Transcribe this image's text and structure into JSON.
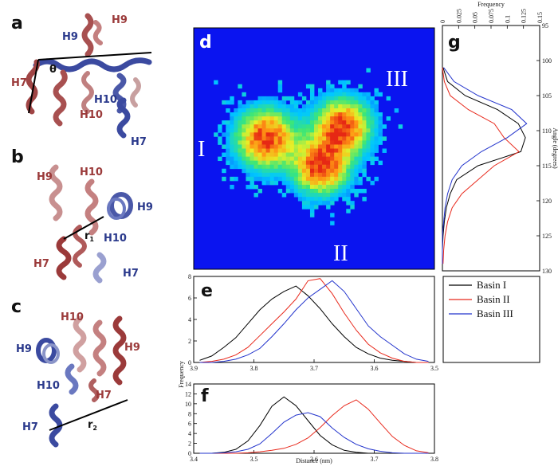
{
  "panels": {
    "a": "a",
    "b": "b",
    "c": "c",
    "d": "d",
    "e": "e",
    "f": "f",
    "g": "g"
  },
  "molecule_labels": {
    "a": {
      "h9_red": "H9",
      "h9_blue": "H9",
      "h7_red": "H7",
      "h10_red": "H10",
      "h10_blue": "H10",
      "h7_blue": "H7",
      "theta": "θ"
    },
    "b": {
      "h9_red": "H9",
      "h10_red": "H10",
      "h9_blue": "H9",
      "h10_blue": "H10",
      "h7_red": "H7",
      "h7_blue": "H7",
      "r": "r",
      "r_sub": "1"
    },
    "c": {
      "h10_red": "H10",
      "h9_red": "H9",
      "h9_blue": "H9",
      "h10_blue": "H10",
      "h7_red": "H7",
      "h7_blue": "H7",
      "r": "r",
      "r_sub": "2"
    }
  },
  "heatmap": {
    "basins": [
      "I",
      "II",
      "III"
    ],
    "background_color": "#0a14f0"
  },
  "colors": {
    "basin1": "#000000",
    "basin2": "#e8291c",
    "basin3": "#2233cc"
  },
  "chart_data": [
    {
      "panel": "e",
      "type": "line",
      "xlabel": "",
      "ylabel": "Frequency",
      "xlim": [
        3.9,
        3.5
      ],
      "ylim": [
        0,
        8
      ],
      "x_ticks": [
        "3.9",
        "3.8",
        "3.7",
        "3.6",
        "3.5"
      ],
      "y_ticks": [
        "0",
        "2",
        "4",
        "6",
        "8"
      ],
      "x": [
        3.89,
        3.87,
        3.85,
        3.83,
        3.81,
        3.79,
        3.77,
        3.75,
        3.73,
        3.71,
        3.69,
        3.67,
        3.65,
        3.63,
        3.61,
        3.59,
        3.57,
        3.55,
        3.53,
        3.51
      ],
      "series": [
        {
          "name": "Basin I",
          "values": [
            0.2,
            0.6,
            1.4,
            2.3,
            3.6,
            4.9,
            5.9,
            6.6,
            7.1,
            6.2,
            5.0,
            3.6,
            2.4,
            1.4,
            0.8,
            0.4,
            0.2,
            0.1,
            0.0,
            0.0
          ]
        },
        {
          "name": "Basin II",
          "values": [
            0.0,
            0.1,
            0.3,
            0.7,
            1.4,
            2.5,
            3.6,
            4.7,
            5.9,
            7.6,
            7.8,
            6.4,
            4.6,
            3.0,
            1.7,
            0.9,
            0.4,
            0.1,
            0.0,
            0.0
          ]
        },
        {
          "name": "Basin III",
          "values": [
            0.0,
            0.0,
            0.1,
            0.3,
            0.7,
            1.3,
            2.4,
            3.6,
            4.9,
            6.0,
            6.8,
            7.6,
            6.6,
            5.0,
            3.4,
            2.4,
            1.6,
            0.8,
            0.3,
            0.1
          ]
        }
      ]
    },
    {
      "panel": "f",
      "type": "line",
      "xlabel": "Distance (nm)",
      "ylabel": "",
      "xlim": [
        3.4,
        3.8
      ],
      "ylim": [
        0,
        14
      ],
      "x_ticks": [
        "3.4",
        "3.5",
        "3.6",
        "3.7",
        "3.8"
      ],
      "y_ticks": [
        "0",
        "2",
        "4",
        "6",
        "8",
        "10",
        "12",
        "14"
      ],
      "x": [
        3.41,
        3.43,
        3.45,
        3.47,
        3.49,
        3.51,
        3.53,
        3.55,
        3.57,
        3.59,
        3.61,
        3.63,
        3.65,
        3.67,
        3.69,
        3.71,
        3.73,
        3.75,
        3.77,
        3.79
      ],
      "series": [
        {
          "name": "Basin I",
          "values": [
            0.0,
            0.0,
            0.2,
            0.8,
            2.5,
            5.6,
            9.5,
            11.4,
            9.6,
            6.6,
            3.6,
            1.7,
            0.6,
            0.2,
            0.0,
            0.0,
            0.0,
            0.0,
            0.0,
            0.0
          ]
        },
        {
          "name": "Basin II",
          "values": [
            0.0,
            0.0,
            0.0,
            0.0,
            0.1,
            0.3,
            0.6,
            1.0,
            1.8,
            3.1,
            5.2,
            7.6,
            9.6,
            10.8,
            8.9,
            6.1,
            3.4,
            1.6,
            0.5,
            0.1
          ]
        },
        {
          "name": "Basin III",
          "values": [
            0.0,
            0.0,
            0.1,
            0.3,
            0.8,
            1.9,
            4.0,
            6.3,
            7.7,
            8.2,
            7.4,
            5.1,
            3.2,
            1.8,
            0.9,
            0.4,
            0.1,
            0.0,
            0.0,
            0.0
          ]
        }
      ]
    },
    {
      "panel": "g",
      "type": "line",
      "xlabel": "Frequency",
      "ylabel": "Angle (degrees)",
      "orientation": "horizontal",
      "xlim": [
        0,
        0.15
      ],
      "ylim": [
        95,
        130
      ],
      "x_ticks": [
        "0",
        "0.025",
        "0.05",
        "0.075",
        "0.1",
        "0.125",
        "0.15"
      ],
      "y_ticks": [
        "95",
        "100",
        "105",
        "110",
        "115",
        "120",
        "125",
        "130"
      ],
      "angle": [
        101,
        103,
        105,
        107,
        109,
        111,
        113,
        115,
        117,
        119,
        121,
        123,
        125,
        127,
        129
      ],
      "series": [
        {
          "name": "Basin I",
          "values": [
            0.001,
            0.008,
            0.035,
            0.085,
            0.117,
            0.128,
            0.121,
            0.055,
            0.022,
            0.012,
            0.006,
            0.003,
            0.001,
            0.0,
            0.0
          ]
        },
        {
          "name": "Basin II",
          "values": [
            0.0,
            0.003,
            0.012,
            0.04,
            0.08,
            0.095,
            0.118,
            0.08,
            0.055,
            0.03,
            0.015,
            0.008,
            0.004,
            0.002,
            0.001
          ]
        },
        {
          "name": "Basin III",
          "values": [
            0.002,
            0.018,
            0.055,
            0.107,
            0.13,
            0.1,
            0.06,
            0.03,
            0.015,
            0.008,
            0.004,
            0.002,
            0.0,
            0.0,
            0.0
          ]
        }
      ]
    }
  ]
}
